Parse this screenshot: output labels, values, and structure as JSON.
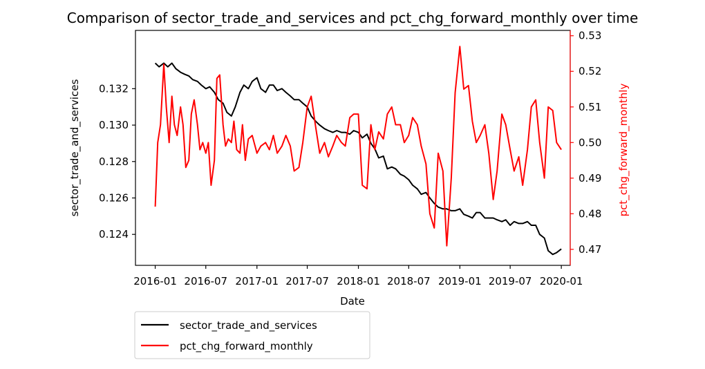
{
  "colors": {
    "left_series": "#000000",
    "right_series": "#ff0000",
    "right_axis": "#ff0000",
    "frame": "#000000"
  },
  "chart_data": {
    "type": "line",
    "title": "Comparison of sector_trade_and_services and pct_chg_forward_monthly over time",
    "xlabel": "Date",
    "ylabel_left": "sector_trade_and_services",
    "ylabel_right": "pct_chg_forward_monthly",
    "x_ticks": [
      "2016-01",
      "2016-07",
      "2017-01",
      "2017-07",
      "2018-01",
      "2018-07",
      "2019-01",
      "2019-07",
      "2020-01"
    ],
    "y_left_ticks": [
      "0.124",
      "0.126",
      "0.128",
      "0.130",
      "0.132"
    ],
    "y_right_ticks": [
      "0.47",
      "0.48",
      "0.49",
      "0.50",
      "0.51",
      "0.52",
      "0.53"
    ],
    "xlim": [
      "2015-10-22",
      "2020-02-02"
    ],
    "ylim_left": [
      0.1223,
      0.1352
    ],
    "ylim_right": [
      0.4655,
      0.5315
    ],
    "legend_placement": "below-left",
    "grid": false,
    "series": [
      {
        "name": "sector_trade_and_services",
        "axis": "left",
        "x": [
          "2016-01-01",
          "2016-01-15",
          "2016-02-01",
          "2016-02-15",
          "2016-03-01",
          "2016-03-15",
          "2016-04-01",
          "2016-04-15",
          "2016-05-01",
          "2016-05-15",
          "2016-06-01",
          "2016-06-15",
          "2016-07-01",
          "2016-07-15",
          "2016-08-01",
          "2016-08-15",
          "2016-09-01",
          "2016-09-15",
          "2016-10-01",
          "2016-10-15",
          "2016-11-01",
          "2016-11-15",
          "2016-12-01",
          "2016-12-15",
          "2017-01-01",
          "2017-01-15",
          "2017-02-01",
          "2017-02-15",
          "2017-03-01",
          "2017-03-15",
          "2017-04-01",
          "2017-04-15",
          "2017-05-01",
          "2017-05-15",
          "2017-06-01",
          "2017-06-15",
          "2017-07-01",
          "2017-07-15",
          "2017-08-01",
          "2017-08-15",
          "2017-09-01",
          "2017-09-15",
          "2017-10-01",
          "2017-10-15",
          "2017-11-01",
          "2017-11-15",
          "2017-12-01",
          "2017-12-15",
          "2018-01-01",
          "2018-01-15",
          "2018-02-01",
          "2018-02-15",
          "2018-03-01",
          "2018-03-15",
          "2018-04-01",
          "2018-04-15",
          "2018-05-01",
          "2018-05-15",
          "2018-06-01",
          "2018-06-15",
          "2018-07-01",
          "2018-07-15",
          "2018-08-01",
          "2018-08-15",
          "2018-09-01",
          "2018-09-15",
          "2018-10-01",
          "2018-10-15",
          "2018-11-01",
          "2018-11-15",
          "2018-12-01",
          "2018-12-15",
          "2019-01-01",
          "2019-01-15",
          "2019-02-01",
          "2019-02-15",
          "2019-03-01",
          "2019-03-15",
          "2019-04-01",
          "2019-04-15",
          "2019-05-01",
          "2019-05-15",
          "2019-06-01",
          "2019-06-15",
          "2019-07-01",
          "2019-07-15",
          "2019-08-01",
          "2019-08-15",
          "2019-09-01",
          "2019-09-15",
          "2019-10-01",
          "2019-10-15",
          "2019-11-01",
          "2019-11-15",
          "2019-12-01",
          "2019-12-15",
          "2020-01-01"
        ],
        "values": [
          0.1334,
          0.1332,
          0.1334,
          0.1332,
          0.1334,
          0.1331,
          0.1329,
          0.1328,
          0.1327,
          0.1325,
          0.1324,
          0.1322,
          0.132,
          0.1321,
          0.1318,
          0.1314,
          0.1312,
          0.1307,
          0.1305,
          0.131,
          0.1318,
          0.1322,
          0.132,
          0.1324,
          0.1326,
          0.132,
          0.1318,
          0.1322,
          0.1322,
          0.1319,
          0.132,
          0.1318,
          0.1316,
          0.1314,
          0.1314,
          0.1312,
          0.131,
          0.1305,
          0.1302,
          0.13,
          0.1298,
          0.1297,
          0.1296,
          0.1297,
          0.1296,
          0.1296,
          0.1295,
          0.1297,
          0.1296,
          0.1293,
          0.1295,
          0.129,
          0.1287,
          0.1282,
          0.1283,
          0.1276,
          0.1277,
          0.1276,
          0.1273,
          0.1272,
          0.127,
          0.1267,
          0.1265,
          0.1262,
          0.1263,
          0.126,
          0.1257,
          0.1255,
          0.1254,
          0.1254,
          0.1253,
          0.1253,
          0.1254,
          0.1251,
          0.125,
          0.1249,
          0.1252,
          0.1252,
          0.1249,
          0.1249,
          0.1249,
          0.1248,
          0.1247,
          0.1248,
          0.1245,
          0.1247,
          0.1246,
          0.1246,
          0.1247,
          0.1245,
          0.1245,
          0.124,
          0.1238,
          0.1231,
          0.1229,
          0.123,
          0.1232
        ]
      },
      {
        "name": "pct_chg_forward_monthly",
        "axis": "right",
        "x": [
          "2016-01-01",
          "2016-01-10",
          "2016-01-20",
          "2016-02-01",
          "2016-02-10",
          "2016-02-20",
          "2016-03-01",
          "2016-03-10",
          "2016-03-20",
          "2016-04-01",
          "2016-04-10",
          "2016-04-20",
          "2016-05-01",
          "2016-05-10",
          "2016-05-20",
          "2016-06-01",
          "2016-06-10",
          "2016-06-20",
          "2016-07-01",
          "2016-07-10",
          "2016-07-20",
          "2016-08-01",
          "2016-08-10",
          "2016-08-20",
          "2016-09-01",
          "2016-09-10",
          "2016-09-20",
          "2016-10-01",
          "2016-10-10",
          "2016-10-20",
          "2016-11-01",
          "2016-11-10",
          "2016-11-20",
          "2016-12-01",
          "2016-12-15",
          "2017-01-01",
          "2017-01-15",
          "2017-02-01",
          "2017-02-15",
          "2017-03-01",
          "2017-03-15",
          "2017-04-01",
          "2017-04-15",
          "2017-05-01",
          "2017-05-15",
          "2017-06-01",
          "2017-06-15",
          "2017-07-01",
          "2017-07-15",
          "2017-08-01",
          "2017-08-15",
          "2017-09-01",
          "2017-09-15",
          "2017-10-01",
          "2017-10-15",
          "2017-11-01",
          "2017-11-15",
          "2017-12-01",
          "2017-12-15",
          "2018-01-01",
          "2018-01-15",
          "2018-02-01",
          "2018-02-15",
          "2018-03-01",
          "2018-03-15",
          "2018-04-01",
          "2018-04-15",
          "2018-05-01",
          "2018-05-15",
          "2018-06-01",
          "2018-06-15",
          "2018-07-01",
          "2018-07-15",
          "2018-08-01",
          "2018-08-15",
          "2018-09-01",
          "2018-09-15",
          "2018-10-01",
          "2018-10-15",
          "2018-11-01",
          "2018-11-15",
          "2018-12-01",
          "2018-12-15",
          "2019-01-01",
          "2019-01-15",
          "2019-02-01",
          "2019-02-15",
          "2019-03-01",
          "2019-03-15",
          "2019-04-01",
          "2019-04-15",
          "2019-05-01",
          "2019-05-15",
          "2019-06-01",
          "2019-06-15",
          "2019-07-01",
          "2019-07-15",
          "2019-08-01",
          "2019-08-15",
          "2019-09-01",
          "2019-09-15",
          "2019-10-01",
          "2019-10-15",
          "2019-11-01",
          "2019-11-15",
          "2019-12-01",
          "2019-12-15",
          "2020-01-01"
        ],
        "values": [
          0.482,
          0.5,
          0.505,
          0.522,
          0.51,
          0.5,
          0.513,
          0.505,
          0.502,
          0.51,
          0.505,
          0.493,
          0.495,
          0.508,
          0.512,
          0.505,
          0.498,
          0.5,
          0.497,
          0.5,
          0.488,
          0.495,
          0.518,
          0.519,
          0.505,
          0.499,
          0.501,
          0.5,
          0.506,
          0.498,
          0.497,
          0.505,
          0.495,
          0.501,
          0.502,
          0.497,
          0.499,
          0.5,
          0.498,
          0.502,
          0.497,
          0.499,
          0.502,
          0.499,
          0.492,
          0.493,
          0.5,
          0.51,
          0.513,
          0.504,
          0.497,
          0.5,
          0.496,
          0.499,
          0.502,
          0.5,
          0.499,
          0.507,
          0.508,
          0.508,
          0.488,
          0.487,
          0.505,
          0.498,
          0.503,
          0.501,
          0.508,
          0.51,
          0.505,
          0.505,
          0.5,
          0.502,
          0.507,
          0.505,
          0.499,
          0.494,
          0.48,
          0.476,
          0.497,
          0.492,
          0.471,
          0.49,
          0.514,
          0.527,
          0.515,
          0.516,
          0.506,
          0.5,
          0.502,
          0.505,
          0.497,
          0.484,
          0.492,
          0.508,
          0.505,
          0.498,
          0.492,
          0.496,
          0.488,
          0.498,
          0.51,
          0.512,
          0.5,
          0.49,
          0.51,
          0.509,
          0.5,
          0.498
        ]
      }
    ]
  }
}
